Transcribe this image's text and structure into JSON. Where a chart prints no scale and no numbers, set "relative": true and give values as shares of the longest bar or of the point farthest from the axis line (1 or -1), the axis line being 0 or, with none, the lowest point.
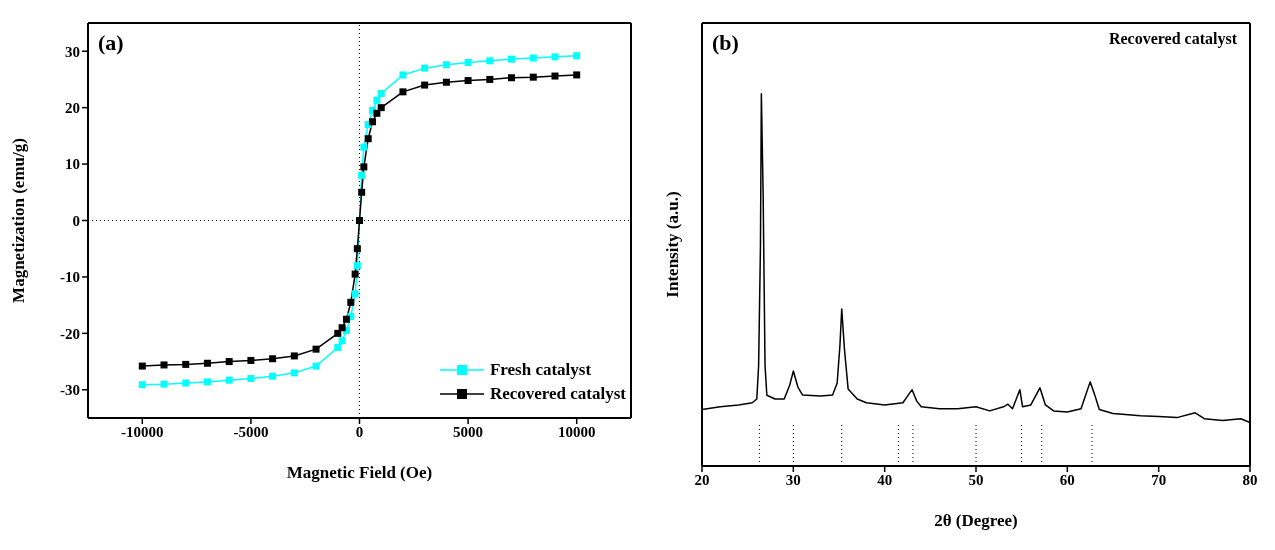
{
  "chart_data": [
    {
      "type": "line",
      "xlabel": "Magnetic Field (Oe)",
      "ylabel": "Magnetization (emu/g)",
      "annotations": [
        "(a)"
      ],
      "xlim": [
        -12500,
        12500
      ],
      "xticks": [
        -10000,
        -5000,
        0,
        5000,
        10000
      ],
      "ylim": [
        -35,
        35
      ],
      "yticks": [
        -30,
        -20,
        -10,
        0,
        10,
        20,
        30
      ],
      "ref_lines": [
        {
          "axis": "x",
          "value": 0,
          "line_style": "dotted",
          "color": "#000000"
        },
        {
          "axis": "y",
          "value": 0,
          "line_style": "dotted",
          "color": "#000000"
        }
      ],
      "legend": "bottom right",
      "marker": "square",
      "line_style": "solid",
      "grid": false,
      "series": [
        {
          "name": "Fresh catalyst",
          "color": "#00ffff",
          "x": [
            -10000,
            -9000,
            -8000,
            -7000,
            -6000,
            -5000,
            -4000,
            -3000,
            -2000,
            -1000,
            -800,
            -600,
            -400,
            -200,
            -100,
            0,
            100,
            200,
            400,
            600,
            800,
            1000,
            2000,
            3000,
            4000,
            5000,
            6000,
            7000,
            8000,
            9000,
            10000
          ],
          "values": [
            -29.1,
            -29,
            -28.8,
            -28.6,
            -28.3,
            -28,
            -27.6,
            -27,
            -25.8,
            -22.5,
            -21.3,
            -19.5,
            -17,
            -13,
            -8,
            0,
            8,
            13,
            17,
            19.5,
            21.3,
            22.5,
            25.8,
            27,
            27.6,
            28,
            28.3,
            28.6,
            28.8,
            29,
            29.2
          ]
        },
        {
          "name": "Recovered catalyst",
          "color": "#000000",
          "x": [
            -10000,
            -9000,
            -8000,
            -7000,
            -6000,
            -5000,
            -4000,
            -3000,
            -2000,
            -1000,
            -800,
            -600,
            -400,
            -200,
            -100,
            0,
            100,
            200,
            400,
            600,
            800,
            1000,
            2000,
            3000,
            4000,
            5000,
            6000,
            7000,
            8000,
            9000,
            10000
          ],
          "values": [
            -25.8,
            -25.6,
            -25.5,
            -25.3,
            -25,
            -24.8,
            -24.5,
            -24,
            -22.8,
            -20,
            -19,
            -17.5,
            -14.5,
            -9.5,
            -5,
            0,
            5,
            9.5,
            14.5,
            17.5,
            19,
            20,
            22.8,
            24,
            24.5,
            24.8,
            25,
            25.3,
            25.4,
            25.6,
            25.8
          ]
        }
      ]
    },
    {
      "type": "line",
      "xlabel": "2θ (Degree)",
      "ylabel": "Intensity (a.u.)",
      "annotations": [
        "(b)",
        "Recovered catalyst"
      ],
      "xlim": [
        20,
        80
      ],
      "xticks": [
        20,
        30,
        40,
        50,
        60,
        70,
        80
      ],
      "relative": true,
      "marker": "none",
      "line_style": "solid",
      "grid": false,
      "ref_lines": [
        {
          "axis": "x",
          "value": 26.3,
          "line_style": "dotted",
          "color": "#000000"
        },
        {
          "axis": "x",
          "value": 30,
          "line_style": "dotted",
          "color": "#000000"
        },
        {
          "axis": "x",
          "value": 35.3,
          "line_style": "dotted",
          "color": "#000000"
        },
        {
          "axis": "x",
          "value": 41.5,
          "line_style": "dotted",
          "color": "#000000"
        },
        {
          "axis": "x",
          "value": 43.1,
          "line_style": "dotted",
          "color": "#000000"
        },
        {
          "axis": "x",
          "value": 50,
          "line_style": "dotted",
          "color": "#000000"
        },
        {
          "axis": "x",
          "value": 55,
          "line_style": "dotted",
          "color": "#000000"
        },
        {
          "axis": "x",
          "value": 57.2,
          "line_style": "dotted",
          "color": "#000000"
        },
        {
          "axis": "x",
          "value": 62.7,
          "line_style": "dotted",
          "color": "#000000"
        }
      ],
      "series": [
        {
          "color": "#000000",
          "x": [
            20,
            22,
            24,
            25.5,
            26,
            26.2,
            26.4,
            26.5,
            26.7,
            26.9,
            27.1,
            28,
            29,
            29.6,
            30,
            30.5,
            31,
            33,
            34.3,
            34.8,
            35.1,
            35.3,
            35.6,
            36,
            37,
            38,
            40,
            42,
            42.6,
            43,
            43.5,
            44,
            46,
            48,
            50,
            51.5,
            53,
            53.5,
            54,
            54.8,
            55.1,
            56,
            57,
            57.6,
            58.5,
            60,
            61.5,
            62.5,
            63,
            63.5,
            65,
            68,
            70,
            72,
            74,
            75,
            77,
            79,
            80
          ],
          "values": [
            0.152,
            0.159,
            0.164,
            0.17,
            0.18,
            0.27,
            0.59,
            1,
            0.72,
            0.27,
            0.19,
            0.18,
            0.18,
            0.217,
            0.255,
            0.212,
            0.191,
            0.188,
            0.191,
            0.223,
            0.323,
            0.422,
            0.313,
            0.207,
            0.18,
            0.17,
            0.164,
            0.17,
            0.191,
            0.205,
            0.175,
            0.159,
            0.154,
            0.154,
            0.159,
            0.148,
            0.159,
            0.166,
            0.154,
            0.205,
            0.159,
            0.164,
            0.21,
            0.164,
            0.148,
            0.145,
            0.154,
            0.226,
            0.191,
            0.152,
            0.141,
            0.135,
            0.133,
            0.13,
            0.143,
            0.127,
            0.122,
            0.127,
            0.117
          ]
        }
      ]
    }
  ]
}
